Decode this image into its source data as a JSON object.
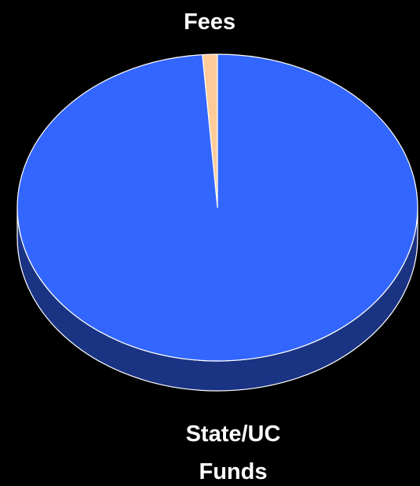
{
  "chart_data": {
    "type": "pie",
    "categories": [
      "Fees",
      "State/UC Funds"
    ],
    "values": [
      1.2,
      98.8
    ],
    "colors": [
      "#ffcc99",
      "#3366ff"
    ],
    "side_colors": [
      "#c9a070",
      "#1a3383"
    ]
  }
}
